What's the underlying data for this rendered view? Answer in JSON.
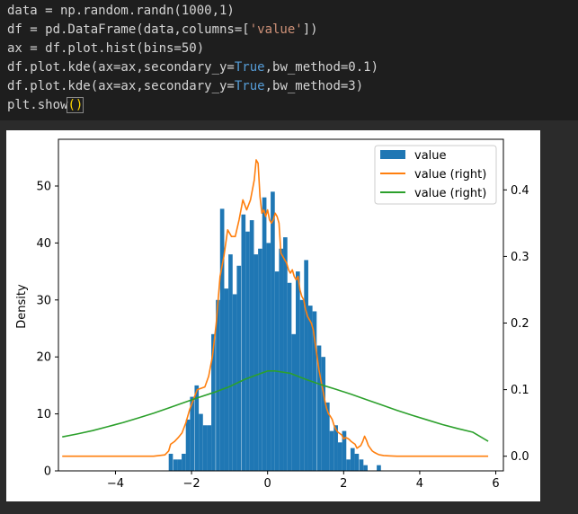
{
  "code": {
    "line1": [
      "data = np.random.randn(1000,1)"
    ],
    "line2": [
      "df = pd.DataFrame(data,columns=[",
      "'value'",
      "])"
    ],
    "line3": [
      "ax = df.plot.hist(bins=50)"
    ],
    "line4": [
      "df.plot.kde(ax=ax,secondary_y=",
      "True",
      ",bw_method=0.1)"
    ],
    "line5": [
      "df.plot.kde(ax=ax,secondary_y=",
      "True",
      ",bw_method=3)"
    ],
    "line6": [
      "plt.show",
      "()"
    ]
  },
  "colors": {
    "hist": "#1f77b4",
    "kde_fine": "#ff7f0e",
    "kde_wide": "#2ca02c"
  },
  "chart_data": {
    "type": "bar",
    "title": "",
    "xlabel": "",
    "ylabel": "Density",
    "xlim": [
      -5.5,
      6.2
    ],
    "ylim_left": [
      0,
      58.2
    ],
    "ylim_right": [
      -0.022,
      0.476
    ],
    "xticks": [
      -4,
      -2,
      0,
      2,
      4,
      6
    ],
    "xtick_labels": [
      "−4",
      "−2",
      "0",
      "2",
      "4",
      "6"
    ],
    "yticks_left": [
      0,
      10,
      20,
      30,
      40,
      50
    ],
    "yticks_right": [
      0.0,
      0.1,
      0.2,
      0.3,
      0.4
    ],
    "ytick_right_labels": [
      "0.0",
      "0.1",
      "0.2",
      "0.3",
      "0.4"
    ],
    "legend": {
      "placement": "upper-right",
      "entries": [
        "value",
        "value (right)",
        "value (right)"
      ]
    },
    "histogram": {
      "name": "value",
      "bin_width": 0.11,
      "bins": [
        [
          -2.6,
          3
        ],
        [
          -2.48,
          2
        ],
        [
          -2.37,
          2
        ],
        [
          -2.26,
          3
        ],
        [
          -2.15,
          9
        ],
        [
          -2.04,
          13
        ],
        [
          -1.92,
          15
        ],
        [
          -1.81,
          10
        ],
        [
          -1.7,
          8
        ],
        [
          -1.59,
          8
        ],
        [
          -1.48,
          24
        ],
        [
          -1.36,
          30
        ],
        [
          -1.25,
          46
        ],
        [
          -1.14,
          32
        ],
        [
          -1.03,
          38
        ],
        [
          -0.92,
          31
        ],
        [
          -0.81,
          36
        ],
        [
          -0.69,
          45
        ],
        [
          -0.58,
          42
        ],
        [
          -0.47,
          44
        ],
        [
          -0.36,
          38
        ],
        [
          -0.25,
          39
        ],
        [
          -0.14,
          48
        ],
        [
          -0.03,
          40
        ],
        [
          0.08,
          49
        ],
        [
          0.19,
          35
        ],
        [
          0.3,
          39
        ],
        [
          0.41,
          41
        ],
        [
          0.52,
          33
        ],
        [
          0.63,
          24
        ],
        [
          0.74,
          35
        ],
        [
          0.85,
          30
        ],
        [
          0.96,
          37
        ],
        [
          1.07,
          29
        ],
        [
          1.18,
          28
        ],
        [
          1.3,
          22
        ],
        [
          1.41,
          20
        ],
        [
          1.52,
          12
        ],
        [
          1.63,
          7
        ],
        [
          1.74,
          8
        ],
        [
          1.85,
          5
        ],
        [
          1.96,
          7
        ],
        [
          2.07,
          2
        ],
        [
          2.18,
          4
        ],
        [
          2.29,
          3
        ],
        [
          2.41,
          2
        ],
        [
          2.52,
          1
        ],
        [
          2.87,
          1
        ]
      ]
    },
    "series": [
      {
        "name": "value (right)",
        "axis": "right",
        "x": [
          -5.4,
          -3.0,
          -2.7,
          -2.6,
          -2.55,
          -2.45,
          -2.35,
          -2.25,
          -2.15,
          -2.05,
          -1.95,
          -1.85,
          -1.75,
          -1.65,
          -1.55,
          -1.45,
          -1.35,
          -1.25,
          -1.15,
          -1.05,
          -0.95,
          -0.85,
          -0.75,
          -0.65,
          -0.55,
          -0.45,
          -0.4,
          -0.35,
          -0.3,
          -0.25,
          -0.2,
          -0.15,
          -0.1,
          -0.05,
          0.0,
          0.05,
          0.1,
          0.15,
          0.2,
          0.25,
          0.3,
          0.35,
          0.4,
          0.45,
          0.5,
          0.55,
          0.6,
          0.65,
          0.7,
          0.75,
          0.8,
          0.85,
          0.9,
          0.95,
          1.0,
          1.05,
          1.1,
          1.15,
          1.2,
          1.25,
          1.3,
          1.35,
          1.4,
          1.45,
          1.5,
          1.55,
          1.6,
          1.65,
          1.7,
          1.75,
          1.8,
          1.85,
          1.9,
          1.95,
          2.0,
          2.05,
          2.1,
          2.15,
          2.2,
          2.25,
          2.3,
          2.35,
          2.4,
          2.45,
          2.5,
          2.55,
          2.6,
          2.65,
          2.7,
          2.75,
          2.8,
          2.85,
          2.9,
          2.95,
          3.0,
          3.05,
          3.1,
          3.2,
          3.4,
          5.8
        ],
        "y": [
          0.0,
          0.0,
          0.002,
          0.008,
          0.018,
          0.022,
          0.028,
          0.035,
          0.05,
          0.07,
          0.085,
          0.1,
          0.102,
          0.104,
          0.12,
          0.15,
          0.2,
          0.27,
          0.3,
          0.34,
          0.33,
          0.33,
          0.355,
          0.385,
          0.37,
          0.385,
          0.4,
          0.415,
          0.445,
          0.44,
          0.39,
          0.365,
          0.37,
          0.36,
          0.37,
          0.355,
          0.35,
          0.355,
          0.365,
          0.36,
          0.35,
          0.305,
          0.3,
          0.295,
          0.29,
          0.28,
          0.275,
          0.28,
          0.27,
          0.265,
          0.27,
          0.25,
          0.24,
          0.235,
          0.22,
          0.21,
          0.205,
          0.2,
          0.19,
          0.17,
          0.15,
          0.13,
          0.115,
          0.1,
          0.085,
          0.072,
          0.064,
          0.06,
          0.055,
          0.046,
          0.04,
          0.036,
          0.034,
          0.032,
          0.026,
          0.028,
          0.027,
          0.025,
          0.022,
          0.02,
          0.018,
          0.012,
          0.014,
          0.016,
          0.022,
          0.03,
          0.024,
          0.016,
          0.012,
          0.008,
          0.006,
          0.0045,
          0.003,
          0.002,
          0.0015,
          0.001,
          0.0008,
          0.0005,
          0.0,
          0.0
        ]
      },
      {
        "name": "value (right)",
        "axis": "right",
        "x": [
          -5.4,
          -5.0,
          -4.6,
          -4.2,
          -3.8,
          -3.4,
          -3.0,
          -2.6,
          -2.2,
          -1.8,
          -1.4,
          -1.0,
          -0.6,
          -0.2,
          0.0,
          0.2,
          0.6,
          1.0,
          1.4,
          1.8,
          2.2,
          2.6,
          3.0,
          3.4,
          3.8,
          4.2,
          4.6,
          5.0,
          5.4,
          5.8
        ],
        "y": [
          0.029,
          0.0335,
          0.0385,
          0.0445,
          0.0505,
          0.0575,
          0.0645,
          0.0725,
          0.0805,
          0.0885,
          0.096,
          0.1045,
          0.1155,
          0.124,
          0.128,
          0.128,
          0.1245,
          0.1155,
          0.1075,
          0.1005,
          0.093,
          0.085,
          0.077,
          0.069,
          0.0615,
          0.0545,
          0.0475,
          0.0415,
          0.036,
          0.0225
        ]
      }
    ]
  }
}
